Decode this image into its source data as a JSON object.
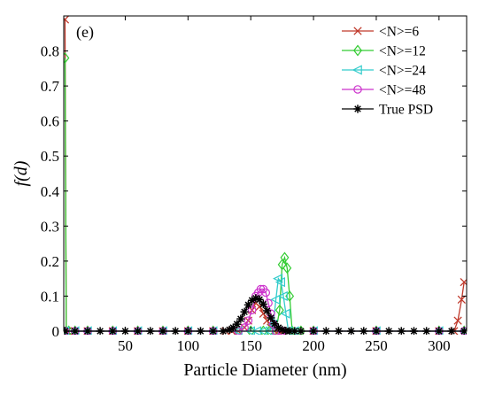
{
  "chart_data": {
    "type": "line",
    "panel_label": "(e)",
    "title": "",
    "xlabel": "Particle Diameter (nm)",
    "ylabel": "f(d)",
    "xlim": [
      1,
      322
    ],
    "ylim": [
      0,
      0.9
    ],
    "x_ticks": [
      50,
      100,
      150,
      200,
      250,
      300
    ],
    "y_ticks": [
      0,
      0.1,
      0.2,
      0.3,
      0.4,
      0.5,
      0.6,
      0.7,
      0.8
    ],
    "grid": false,
    "legend_position": "top-right",
    "series": [
      {
        "name": "<N>=6",
        "color": "#c0392b",
        "marker": "x",
        "x": [
          2,
          3,
          4,
          10,
          20,
          40,
          60,
          80,
          100,
          120,
          130,
          135,
          140,
          145,
          148,
          151,
          154,
          157,
          160,
          163,
          166,
          169,
          172,
          175,
          180,
          200,
          250,
          300,
          312,
          315,
          318,
          320
        ],
        "y": [
          0.89,
          0.0,
          0.0,
          0.0,
          0.0,
          0.0,
          0.0,
          0.0,
          0.0,
          0.0,
          0.0,
          0.0,
          0.0,
          0.01,
          0.03,
          0.06,
          0.08,
          0.07,
          0.05,
          0.03,
          0.01,
          0.0,
          0.0,
          0.0,
          0.0,
          0.0,
          0.0,
          0.0,
          0.0,
          0.03,
          0.09,
          0.14
        ]
      },
      {
        "name": "<N>=12",
        "color": "#33cc33",
        "marker": "diamond",
        "x": [
          2,
          3,
          5,
          10,
          20,
          40,
          60,
          80,
          100,
          120,
          140,
          150,
          160,
          165,
          170,
          173,
          175,
          177,
          179,
          181,
          183,
          190,
          200,
          250,
          300,
          320
        ],
        "y": [
          0.78,
          0.0,
          0.0,
          0.0,
          0.0,
          0.0,
          0.0,
          0.0,
          0.0,
          0.0,
          0.0,
          0.0,
          0.0,
          0.0,
          0.0,
          0.06,
          0.19,
          0.21,
          0.18,
          0.1,
          0.0,
          0.0,
          0.0,
          0.0,
          0.0,
          0.0
        ]
      },
      {
        "name": "<N>=24",
        "color": "#33cccc",
        "marker": "triangle-left",
        "x": [
          2,
          10,
          20,
          40,
          60,
          80,
          100,
          120,
          140,
          150,
          155,
          160,
          165,
          168,
          170,
          172,
          174,
          176,
          178,
          180,
          185,
          200,
          250,
          300,
          320
        ],
        "y": [
          0.0,
          0.0,
          0.0,
          0.0,
          0.0,
          0.0,
          0.0,
          0.0,
          0.0,
          0.0,
          0.0,
          0.0,
          0.0,
          0.02,
          0.09,
          0.15,
          0.14,
          0.1,
          0.05,
          0.0,
          0.0,
          0.0,
          0.0,
          0.0,
          0.0
        ]
      },
      {
        "name": "<N>=48",
        "color": "#cc33cc",
        "marker": "circle",
        "x": [
          2,
          10,
          20,
          40,
          60,
          80,
          100,
          120,
          140,
          145,
          148,
          151,
          154,
          156,
          158,
          160,
          162,
          164,
          166,
          168,
          170,
          175,
          200,
          250,
          300,
          320
        ],
        "y": [
          0.0,
          0.0,
          0.0,
          0.0,
          0.0,
          0.0,
          0.0,
          0.0,
          0.0,
          0.01,
          0.03,
          0.06,
          0.1,
          0.11,
          0.12,
          0.12,
          0.11,
          0.08,
          0.05,
          0.02,
          0.0,
          0.0,
          0.0,
          0.0,
          0.0,
          0.0
        ]
      },
      {
        "name": "True PSD",
        "color": "#000000",
        "marker": "star",
        "x": [
          2,
          10,
          20,
          30,
          40,
          50,
          60,
          70,
          80,
          90,
          100,
          110,
          120,
          128,
          133,
          136,
          139,
          142,
          145,
          148,
          151,
          154,
          157,
          160,
          163,
          166,
          169,
          172,
          175,
          178,
          181,
          185,
          190,
          200,
          210,
          220,
          230,
          240,
          250,
          260,
          270,
          280,
          290,
          300,
          310,
          320
        ],
        "y": [
          0.0,
          0.0,
          0.0,
          0.0,
          0.0,
          0.0,
          0.0,
          0.0,
          0.0,
          0.0,
          0.0,
          0.0,
          0.0,
          0.0,
          0.004,
          0.01,
          0.02,
          0.035,
          0.055,
          0.075,
          0.088,
          0.094,
          0.09,
          0.077,
          0.058,
          0.038,
          0.021,
          0.01,
          0.004,
          0.001,
          0.0,
          0.0,
          0.0,
          0.0,
          0.0,
          0.0,
          0.0,
          0.0,
          0.0,
          0.0,
          0.0,
          0.0,
          0.0,
          0.0,
          0.0,
          0.0
        ]
      }
    ]
  }
}
